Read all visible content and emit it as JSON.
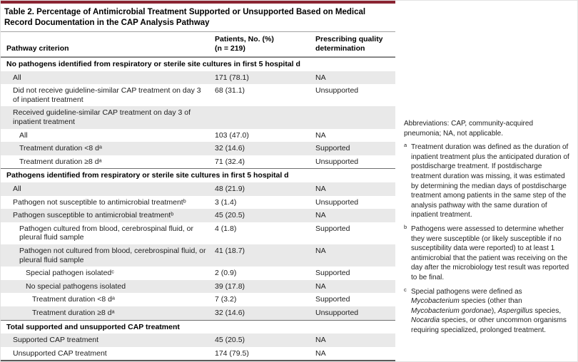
{
  "colors": {
    "accent": "#8a2432",
    "row_shade": "#e9e9e9"
  },
  "table": {
    "title": "Table 2. Percentage of Antimicrobial Treatment Supported or Unsupported Based on Medical Record Documentation in the CAP Analysis Pathway",
    "columns": {
      "criterion": "Pathway criterion",
      "patients": "Patients, No. (%)\n(n = 219)",
      "quality": "Prescribing quality\ndetermination"
    },
    "rows": [
      {
        "type": "section",
        "indent": 0,
        "criterion": "No pathogens identified from respiratory or sterile site cultures in first 5 hospital d",
        "patients": "",
        "quality": "",
        "shade": false
      },
      {
        "type": "data",
        "indent": 1,
        "criterion": "All",
        "patients": "171 (78.1)",
        "quality": "NA",
        "shade": true
      },
      {
        "type": "data",
        "indent": 1,
        "criterion": "Did not receive guideline-similar CAP treatment on day 3 of inpatient treatment",
        "patients": "68 (31.1)",
        "quality": "Unsupported",
        "shade": false
      },
      {
        "type": "data",
        "indent": 1,
        "criterion": "Received guideline-similar CAP treatment on day 3 of inpatient treatment",
        "patients": "",
        "quality": "",
        "shade": true
      },
      {
        "type": "data",
        "indent": 2,
        "criterion": "All",
        "patients": "103 (47.0)",
        "quality": "NA",
        "shade": false
      },
      {
        "type": "data",
        "indent": 2,
        "criterion": "Treatment duration <8 dᵃ",
        "patients": "32 (14.6)",
        "quality": "Supported",
        "shade": true
      },
      {
        "type": "data",
        "indent": 2,
        "criterion": "Treatment duration ≥8 dᵃ",
        "patients": "71 (32.4)",
        "quality": "Unsupported",
        "shade": false
      },
      {
        "type": "section",
        "indent": 0,
        "criterion": "Pathogens identified from respiratory or sterile site cultures in first 5 hospital d",
        "patients": "",
        "quality": "",
        "shade": false
      },
      {
        "type": "data",
        "indent": 1,
        "criterion": "All",
        "patients": "48 (21.9)",
        "quality": "NA",
        "shade": true
      },
      {
        "type": "data",
        "indent": 1,
        "criterion": "Pathogen not susceptible to antimicrobial treatmentᵇ",
        "patients": "3 (1.4)",
        "quality": "Unsupported",
        "shade": false
      },
      {
        "type": "data",
        "indent": 1,
        "criterion": "Pathogen susceptible to antimicrobial treatmentᵇ",
        "patients": "45 (20.5)",
        "quality": "NA",
        "shade": true
      },
      {
        "type": "data",
        "indent": 2,
        "criterion": "Pathogen cultured from blood, cerebrospinal fluid, or pleural fluid sample",
        "patients": "4 (1.8)",
        "quality": "Supported",
        "shade": false
      },
      {
        "type": "data",
        "indent": 2,
        "criterion": "Pathogen not cultured from blood, cerebrospinal fluid, or pleural fluid sample",
        "patients": "41 (18.7)",
        "quality": "NA",
        "shade": true
      },
      {
        "type": "data",
        "indent": 3,
        "criterion": "Special pathogen isolatedᶜ",
        "patients": "2 (0.9)",
        "quality": "Supported",
        "shade": false
      },
      {
        "type": "data",
        "indent": 3,
        "criterion": "No special pathogens isolated",
        "patients": "39 (17.8)",
        "quality": "NA",
        "shade": true
      },
      {
        "type": "data",
        "indent": 4,
        "criterion": "Treatment duration <8 dᵃ",
        "patients": "7 (3.2)",
        "quality": "Supported",
        "shade": false
      },
      {
        "type": "data",
        "indent": 4,
        "criterion": "Treatment duration ≥8 dᵃ",
        "patients": "32 (14.6)",
        "quality": "Unsupported",
        "shade": true
      },
      {
        "type": "section",
        "indent": 0,
        "criterion": "Total supported and unsupported CAP treatment",
        "patients": "",
        "quality": "",
        "shade": false
      },
      {
        "type": "data",
        "indent": 1,
        "criterion": "Supported CAP treatment",
        "patients": "45 (20.5)",
        "quality": "NA",
        "shade": true
      },
      {
        "type": "data",
        "indent": 1,
        "criterion": "Unsupported CAP treatment",
        "patients": "174 (79.5)",
        "quality": "NA",
        "shade": false
      }
    ]
  },
  "footnotes": {
    "abbreviations": "Abbreviations: CAP, community-acquired pneumonia; NA, not applicable.",
    "items": [
      {
        "marker": "a",
        "segments": [
          {
            "text": "Treatment duration was defined as the duration of inpatient treatment plus the anticipated duration of postdischarge treatment. If postdischarge treatment duration was missing, it was estimated by determining the median days of postdischarge treatment among patients in the same step of the analysis pathway with the same duration of inpatient treatment.",
            "italic": false
          }
        ]
      },
      {
        "marker": "b",
        "segments": [
          {
            "text": "Pathogens were assessed to determine whether they were susceptible (or likely susceptible if no susceptibility data were reported) to at least 1 antimicrobial that the patient was receiving on the day after the microbiology test result was reported to be final.",
            "italic": false
          }
        ]
      },
      {
        "marker": "c",
        "segments": [
          {
            "text": "Special pathogens were defined as ",
            "italic": false
          },
          {
            "text": "Mycobacterium",
            "italic": true
          },
          {
            "text": " species (other than ",
            "italic": false
          },
          {
            "text": "Mycobacterium gordonae",
            "italic": true
          },
          {
            "text": "), ",
            "italic": false
          },
          {
            "text": "Aspergillus",
            "italic": true
          },
          {
            "text": " species, ",
            "italic": false
          },
          {
            "text": "Nocardia",
            "italic": true
          },
          {
            "text": " species, or other uncommon organisms requiring specialized, prolonged treatment.",
            "italic": false
          }
        ]
      }
    ]
  }
}
